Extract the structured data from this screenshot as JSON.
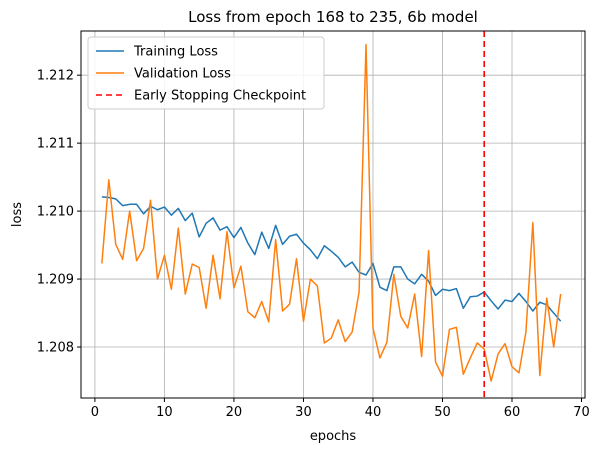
{
  "chart_data": {
    "type": "line",
    "title": "Loss from epoch 168 to 235, 6b model",
    "xlabel": "epochs",
    "ylabel": "loss",
    "xlim": [
      -2,
      70.5
    ],
    "ylim": [
      1.20725,
      1.21265
    ],
    "xticks": [
      0,
      10,
      20,
      30,
      40,
      50,
      60,
      70
    ],
    "yticks": [
      1.208,
      1.209,
      1.21,
      1.211,
      1.212
    ],
    "ytick_labels": [
      "1.208",
      "1.209",
      "1.210",
      "1.211",
      "1.212"
    ],
    "grid": true,
    "legend_position": "top-left",
    "x": [
      1,
      2,
      3,
      4,
      5,
      6,
      7,
      8,
      9,
      10,
      11,
      12,
      13,
      14,
      15,
      16,
      17,
      18,
      19,
      20,
      21,
      22,
      23,
      24,
      25,
      26,
      27,
      28,
      29,
      30,
      31,
      32,
      33,
      34,
      35,
      36,
      37,
      38,
      39,
      40,
      41,
      42,
      43,
      44,
      45,
      46,
      47,
      48,
      49,
      50,
      51,
      52,
      53,
      54,
      55,
      56,
      57,
      58,
      59,
      60,
      61,
      62,
      63,
      64,
      65,
      66,
      67
    ],
    "series": [
      {
        "name": "Training Loss",
        "color": "#1f77b4",
        "style": "solid",
        "values": [
          1.21021,
          1.2102,
          1.21018,
          1.21008,
          1.2101,
          1.2101,
          1.20996,
          1.21007,
          1.21002,
          1.21006,
          1.20994,
          1.21004,
          1.20986,
          1.20997,
          1.20962,
          1.20982,
          1.2099,
          1.20972,
          1.20977,
          1.20961,
          1.20976,
          1.20953,
          1.20936,
          1.20969,
          1.20945,
          1.20979,
          1.20951,
          1.20963,
          1.20966,
          1.20953,
          1.20943,
          1.2093,
          1.20949,
          1.20941,
          1.20932,
          1.20918,
          1.20925,
          1.2091,
          1.20906,
          1.20923,
          1.20888,
          1.20883,
          1.20918,
          1.20918,
          1.209,
          1.20893,
          1.20907,
          1.20897,
          1.20876,
          1.20885,
          1.20883,
          1.20886,
          1.20857,
          1.20874,
          1.20875,
          1.20881,
          1.20868,
          1.20856,
          1.20869,
          1.20867,
          1.20879,
          1.20867,
          1.20853,
          1.20866,
          1.20862,
          1.2085,
          1.20838
        ]
      },
      {
        "name": "Validation Loss",
        "color": "#ff7f0e",
        "style": "solid",
        "values": [
          1.20923,
          1.21046,
          1.20951,
          1.20929,
          1.21,
          1.20927,
          1.20945,
          1.21016,
          1.209,
          1.20935,
          1.20885,
          1.20975,
          1.20878,
          1.20922,
          1.20917,
          1.20857,
          1.20935,
          1.20871,
          1.2097,
          1.20887,
          1.20919,
          1.20852,
          1.20843,
          1.20867,
          1.20837,
          1.20958,
          1.20853,
          1.20863,
          1.2093,
          1.20838,
          1.209,
          1.2089,
          1.20806,
          1.20813,
          1.2084,
          1.20808,
          1.20822,
          1.20881,
          1.21245,
          1.20828,
          1.20784,
          1.20807,
          1.20907,
          1.20845,
          1.20828,
          1.20878,
          1.20786,
          1.20942,
          1.20778,
          1.20757,
          1.20826,
          1.20829,
          1.2076,
          1.20784,
          1.20806,
          1.20797,
          1.2075,
          1.2079,
          1.20805,
          1.20771,
          1.20762,
          1.20822,
          1.20983,
          1.20758,
          1.20872,
          1.208,
          1.20878
        ]
      }
    ],
    "annotations": [
      {
        "type": "vline",
        "x": 56,
        "label": "Early Stopping Checkpoint",
        "color": "#ff0000",
        "style": "dashed"
      }
    ]
  }
}
